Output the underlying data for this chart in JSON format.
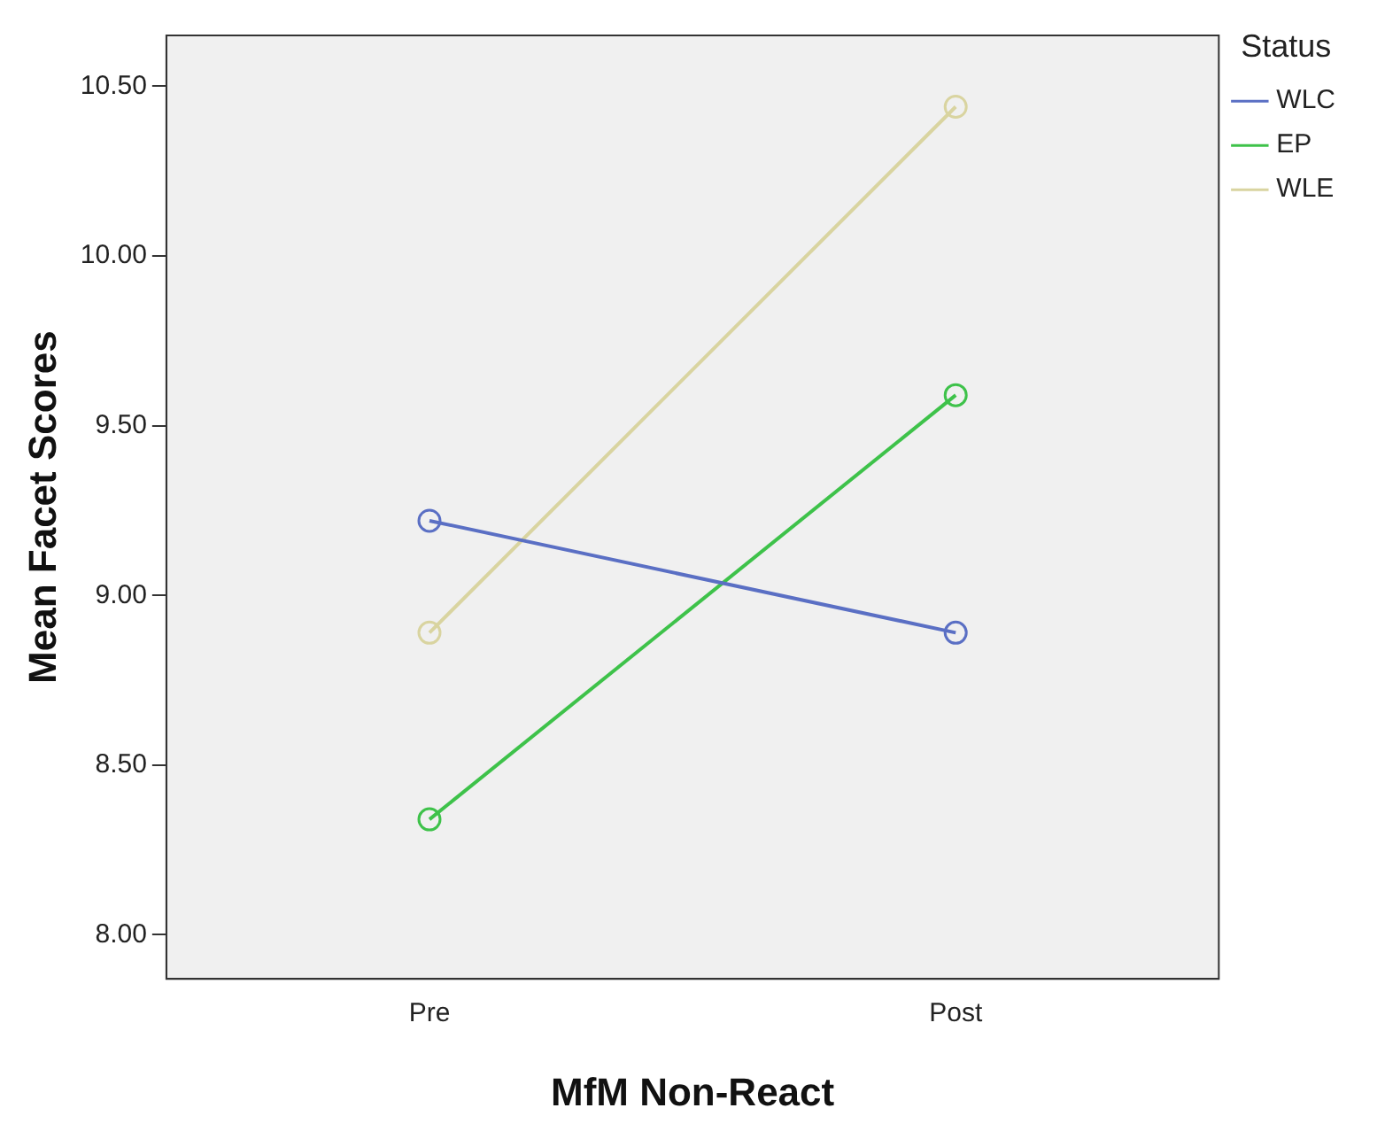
{
  "chart_data": {
    "type": "line",
    "xlabel": "MfM Non-React",
    "ylabel": "Mean Facet Scores",
    "legend_title": "Status",
    "categories": [
      "Pre",
      "Post"
    ],
    "series": [
      {
        "name": "WLC",
        "color": "#5a6fc4",
        "values": [
          9.22,
          8.89
        ]
      },
      {
        "name": "EP",
        "color": "#3ec24a",
        "values": [
          8.34,
          9.59
        ]
      },
      {
        "name": "WLE",
        "color": "#d9d4a0",
        "values": [
          8.89,
          10.44
        ]
      }
    ],
    "ylim": [
      7.87,
      10.65
    ],
    "yticks": [
      {
        "value": 8,
        "label": "8.00"
      },
      {
        "value": 8.5,
        "label": "8.50"
      },
      {
        "value": 9,
        "label": "9.00"
      },
      {
        "value": 9.5,
        "label": "9.50"
      },
      {
        "value": 10,
        "label": "10.00"
      },
      {
        "value": 10.5,
        "label": "10.50"
      }
    ],
    "grid": false,
    "legend": "right",
    "marker": "circle",
    "line_style": "solid"
  }
}
